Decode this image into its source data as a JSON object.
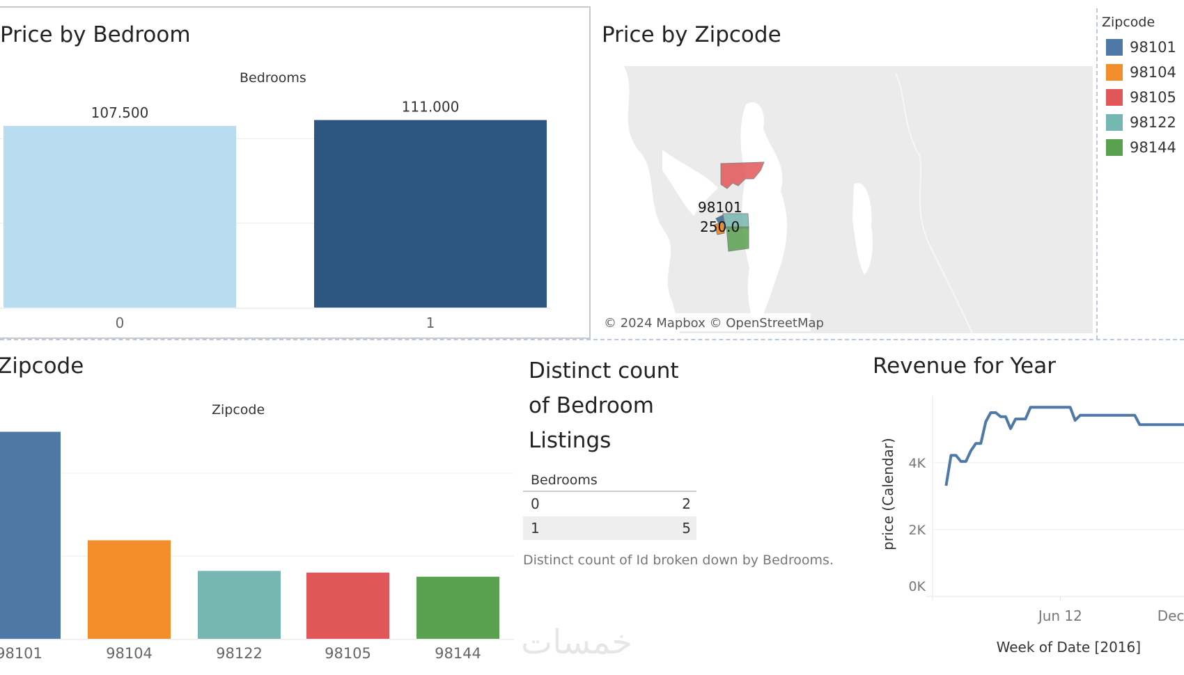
{
  "price_by_bedroom": {
    "title": "Price by Bedroom",
    "header": "Bedrooms",
    "chart_data": {
      "type": "bar",
      "categories": [
        "0",
        "1"
      ],
      "values": [
        107.5,
        111.0
      ],
      "value_labels": [
        "107.500",
        "111.000"
      ],
      "colors": [
        "#b8ddf0",
        "#2c5680"
      ],
      "ylim": [
        0,
        120
      ],
      "grid": true
    }
  },
  "price_by_zipcode_map": {
    "title": "Price by Zipcode",
    "mark_label_zip": "98101",
    "mark_label_value": "250.0",
    "attribution": "© 2024 Mapbox © OpenStreetMap",
    "legend": {
      "title": "Zipcode",
      "items": [
        {
          "label": "98101",
          "color": "#4e79a7"
        },
        {
          "label": "98104",
          "color": "#f28e2b"
        },
        {
          "label": "98105",
          "color": "#e15759"
        },
        {
          "label": "98122",
          "color": "#76b7b2"
        },
        {
          "label": "98144",
          "color": "#59a14f"
        }
      ]
    }
  },
  "zipcode_bars": {
    "title": "Zipcode",
    "header": "Zipcode",
    "chart_data": {
      "type": "bar",
      "categories": [
        "98101",
        "98104",
        "98122",
        "98105",
        "98144"
      ],
      "values": [
        250,
        119,
        82,
        80,
        75
      ],
      "colors": [
        "#4e79a7",
        "#f28e2b",
        "#76b7b2",
        "#e15759",
        "#59a14f"
      ],
      "ylim": [
        0,
        260
      ],
      "grid": true
    }
  },
  "distinct_count": {
    "title_lines": [
      "Distinct count",
      "of Bedroom",
      "Listings"
    ],
    "table": {
      "header": "Bedrooms",
      "rows": [
        {
          "bedrooms": "0",
          "count": "2"
        },
        {
          "bedrooms": "1",
          "count": "5"
        }
      ]
    },
    "caption": "Distinct count of Id broken down by Bedrooms."
  },
  "revenue": {
    "title": "Revenue for Year",
    "chart_data": {
      "type": "line",
      "xlabel": "Week of Date [2016]",
      "ylabel": "price (Calendar)",
      "ylim": [
        0,
        6000
      ],
      "xlim": [
        "2015-12-15",
        "2016-12-31"
      ],
      "yticks": [
        {
          "value": 0,
          "label": "0K"
        },
        {
          "value": 2000,
          "label": "2K"
        },
        {
          "value": 4000,
          "label": "4K"
        }
      ],
      "xticks": [
        {
          "date": "2016-06-12",
          "label": "Jun 12"
        },
        {
          "date": "2016-12-11",
          "label": "Dec"
        }
      ],
      "color": "#4e79a7",
      "grid": true,
      "x": [
        "2016-01-03",
        "2016-01-10",
        "2016-01-17",
        "2016-01-24",
        "2016-01-31",
        "2016-02-07",
        "2016-02-14",
        "2016-02-21",
        "2016-02-28",
        "2016-03-06",
        "2016-03-13",
        "2016-03-20",
        "2016-03-27",
        "2016-04-03",
        "2016-04-10",
        "2016-04-24",
        "2016-05-01",
        "2016-06-26",
        "2016-07-03",
        "2016-07-10",
        "2016-09-25",
        "2016-10-02",
        "2016-12-04"
      ],
      "y": [
        3310,
        4220,
        4220,
        4040,
        4040,
        4360,
        4580,
        4580,
        5230,
        5500,
        5500,
        5380,
        5380,
        5020,
        5310,
        5310,
        5660,
        5660,
        5270,
        5420,
        5420,
        5140,
        5140
      ]
    }
  },
  "watermark": "خمسات"
}
